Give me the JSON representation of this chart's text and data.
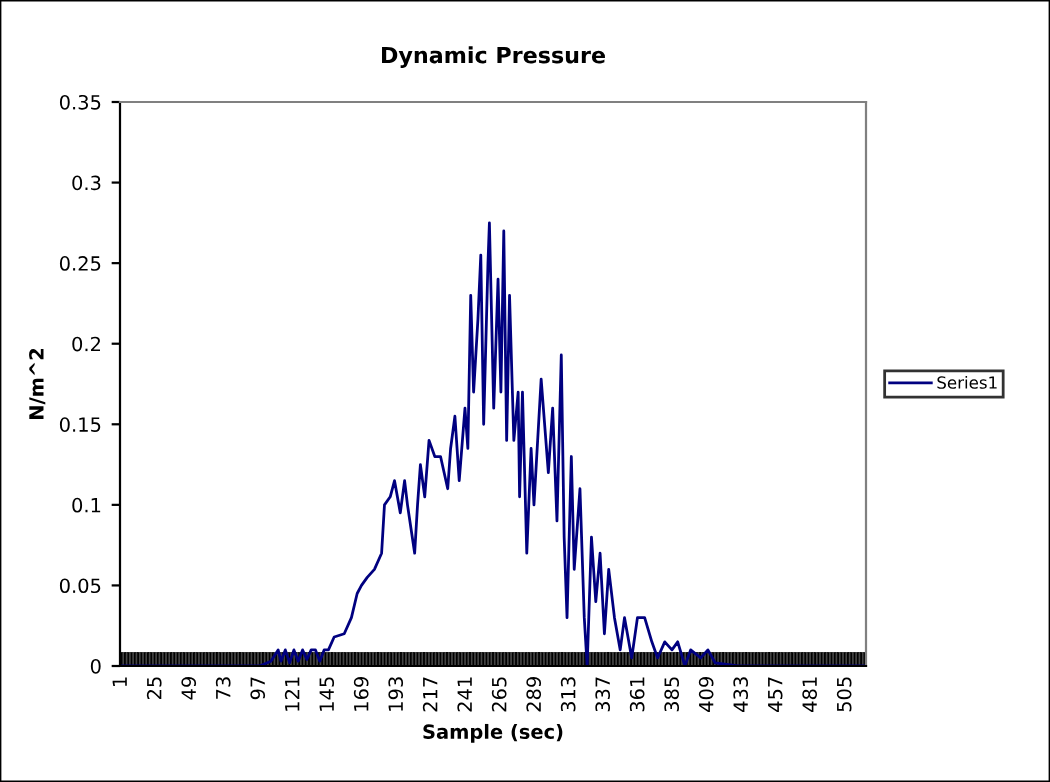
{
  "chart_data": {
    "type": "line",
    "title": "Dynamic Pressure",
    "xlabel": "Sample (sec)",
    "ylabel": "N/m^2",
    "x": [
      1,
      20,
      40,
      60,
      80,
      97,
      105,
      110,
      112,
      115,
      118,
      121,
      124,
      127,
      130,
      133,
      136,
      139,
      142,
      145,
      149,
      156,
      161,
      165,
      168,
      172,
      177,
      182,
      184,
      188,
      191,
      195,
      198,
      200,
      205,
      207,
      209,
      212,
      215,
      219,
      223,
      228,
      230,
      233,
      236,
      240,
      242,
      244,
      246,
      249,
      251,
      253,
      256,
      257,
      260,
      263,
      265,
      267,
      269,
      271,
      274,
      277,
      278,
      280,
      283,
      286,
      288,
      293,
      298,
      301,
      304,
      307,
      309,
      311,
      314,
      316,
      320,
      323,
      325,
      328,
      331,
      334,
      337,
      340,
      344,
      348,
      351,
      356,
      360,
      365,
      370,
      374,
      379,
      384,
      388,
      393,
      397,
      404,
      409,
      414,
      430,
      460,
      490,
      518
    ],
    "series": [
      {
        "name": "Series1",
        "color": "#000080",
        "values": [
          0,
          0,
          0,
          0,
          0,
          0,
          0.003,
          0.01,
          0.003,
          0.01,
          0.002,
          0.01,
          0.003,
          0.01,
          0.004,
          0.01,
          0.01,
          0.003,
          0.01,
          0.01,
          0.018,
          0.02,
          0.03,
          0.045,
          0.05,
          0.055,
          0.06,
          0.07,
          0.1,
          0.105,
          0.115,
          0.095,
          0.115,
          0.1,
          0.07,
          0.1,
          0.125,
          0.105,
          0.14,
          0.13,
          0.13,
          0.11,
          0.135,
          0.155,
          0.115,
          0.16,
          0.135,
          0.23,
          0.17,
          0.215,
          0.255,
          0.15,
          0.25,
          0.275,
          0.16,
          0.24,
          0.17,
          0.27,
          0.14,
          0.23,
          0.14,
          0.17,
          0.105,
          0.17,
          0.07,
          0.135,
          0.1,
          0.178,
          0.12,
          0.16,
          0.09,
          0.193,
          0.08,
          0.03,
          0.13,
          0.06,
          0.11,
          0.03,
          0,
          0.08,
          0.04,
          0.07,
          0.02,
          0.06,
          0.03,
          0.01,
          0.03,
          0.005,
          0.03,
          0.03,
          0.015,
          0.005,
          0.015,
          0.01,
          0.015,
          0,
          0.01,
          0.005,
          0.01,
          0.002,
          0,
          0,
          0,
          0
        ]
      }
    ],
    "xlim": [
      0,
      519
    ],
    "xticks": [
      1,
      25,
      49,
      73,
      97,
      121,
      145,
      169,
      193,
      217,
      241,
      265,
      289,
      313,
      337,
      361,
      385,
      409,
      433,
      457,
      481,
      505
    ],
    "ylim": [
      0,
      0.35
    ],
    "yticks": [
      0,
      0.05,
      0.1,
      0.15,
      0.2,
      0.25,
      0.3,
      0.35
    ],
    "grid": false,
    "legend": "right",
    "marker": "none",
    "line_style": "solid"
  }
}
